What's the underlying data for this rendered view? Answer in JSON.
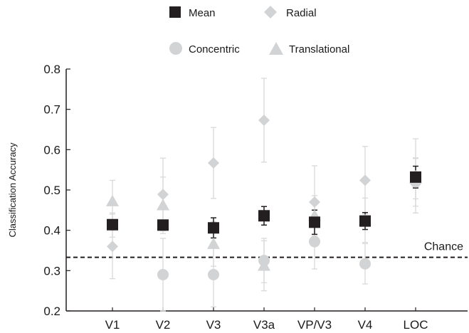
{
  "chart_data": {
    "type": "scatter",
    "ylabel": "Classification Accuracy",
    "xlabel": "",
    "categories": [
      "V1",
      "V2",
      "V3",
      "V3a",
      "VP/V3",
      "V4",
      "LOC"
    ],
    "ylim": [
      0.2,
      0.8
    ],
    "yticks": [
      "0.2",
      "0.3",
      "0.4",
      "0.5",
      "0.6",
      "0.7",
      "0.8"
    ],
    "chance": {
      "label": "Chance",
      "value": 0.333
    },
    "legend_position": "top-center",
    "colors": {
      "mean": "#231f20",
      "conditions": "#d2d3d4",
      "errorbar_light": "#d9d9d9",
      "chance": "#231f20"
    },
    "series": [
      {
        "name": "Mean",
        "marker": "square",
        "values": [
          0.414,
          0.413,
          0.406,
          0.436,
          0.42,
          0.423,
          0.532
        ],
        "err": [
          0.012,
          0.01,
          0.025,
          0.023,
          0.03,
          0.021,
          0.027
        ]
      },
      {
        "name": "Radial",
        "marker": "diamond",
        "values": [
          0.36,
          0.489,
          0.567,
          0.673,
          0.47,
          0.524,
          0.535
        ],
        "err": [
          0.08,
          0.09,
          0.088,
          0.104,
          0.09,
          0.084,
          0.092
        ]
      },
      {
        "name": "Concentric",
        "marker": "circle",
        "values": [
          0.413,
          0.29,
          0.29,
          0.325,
          0.372,
          0.317,
          0.52
        ],
        "err": [
          0.03,
          0.09,
          0.08,
          0.055,
          0.068,
          0.05,
          0.06
        ]
      },
      {
        "name": "Translational",
        "marker": "triangle",
        "values": [
          0.472,
          0.462,
          0.366,
          0.312,
          0.436,
          0.425,
          0.528
        ],
        "err": [
          0.052,
          0.07,
          0.055,
          0.062,
          0.05,
          0.055,
          0.05
        ]
      }
    ]
  }
}
